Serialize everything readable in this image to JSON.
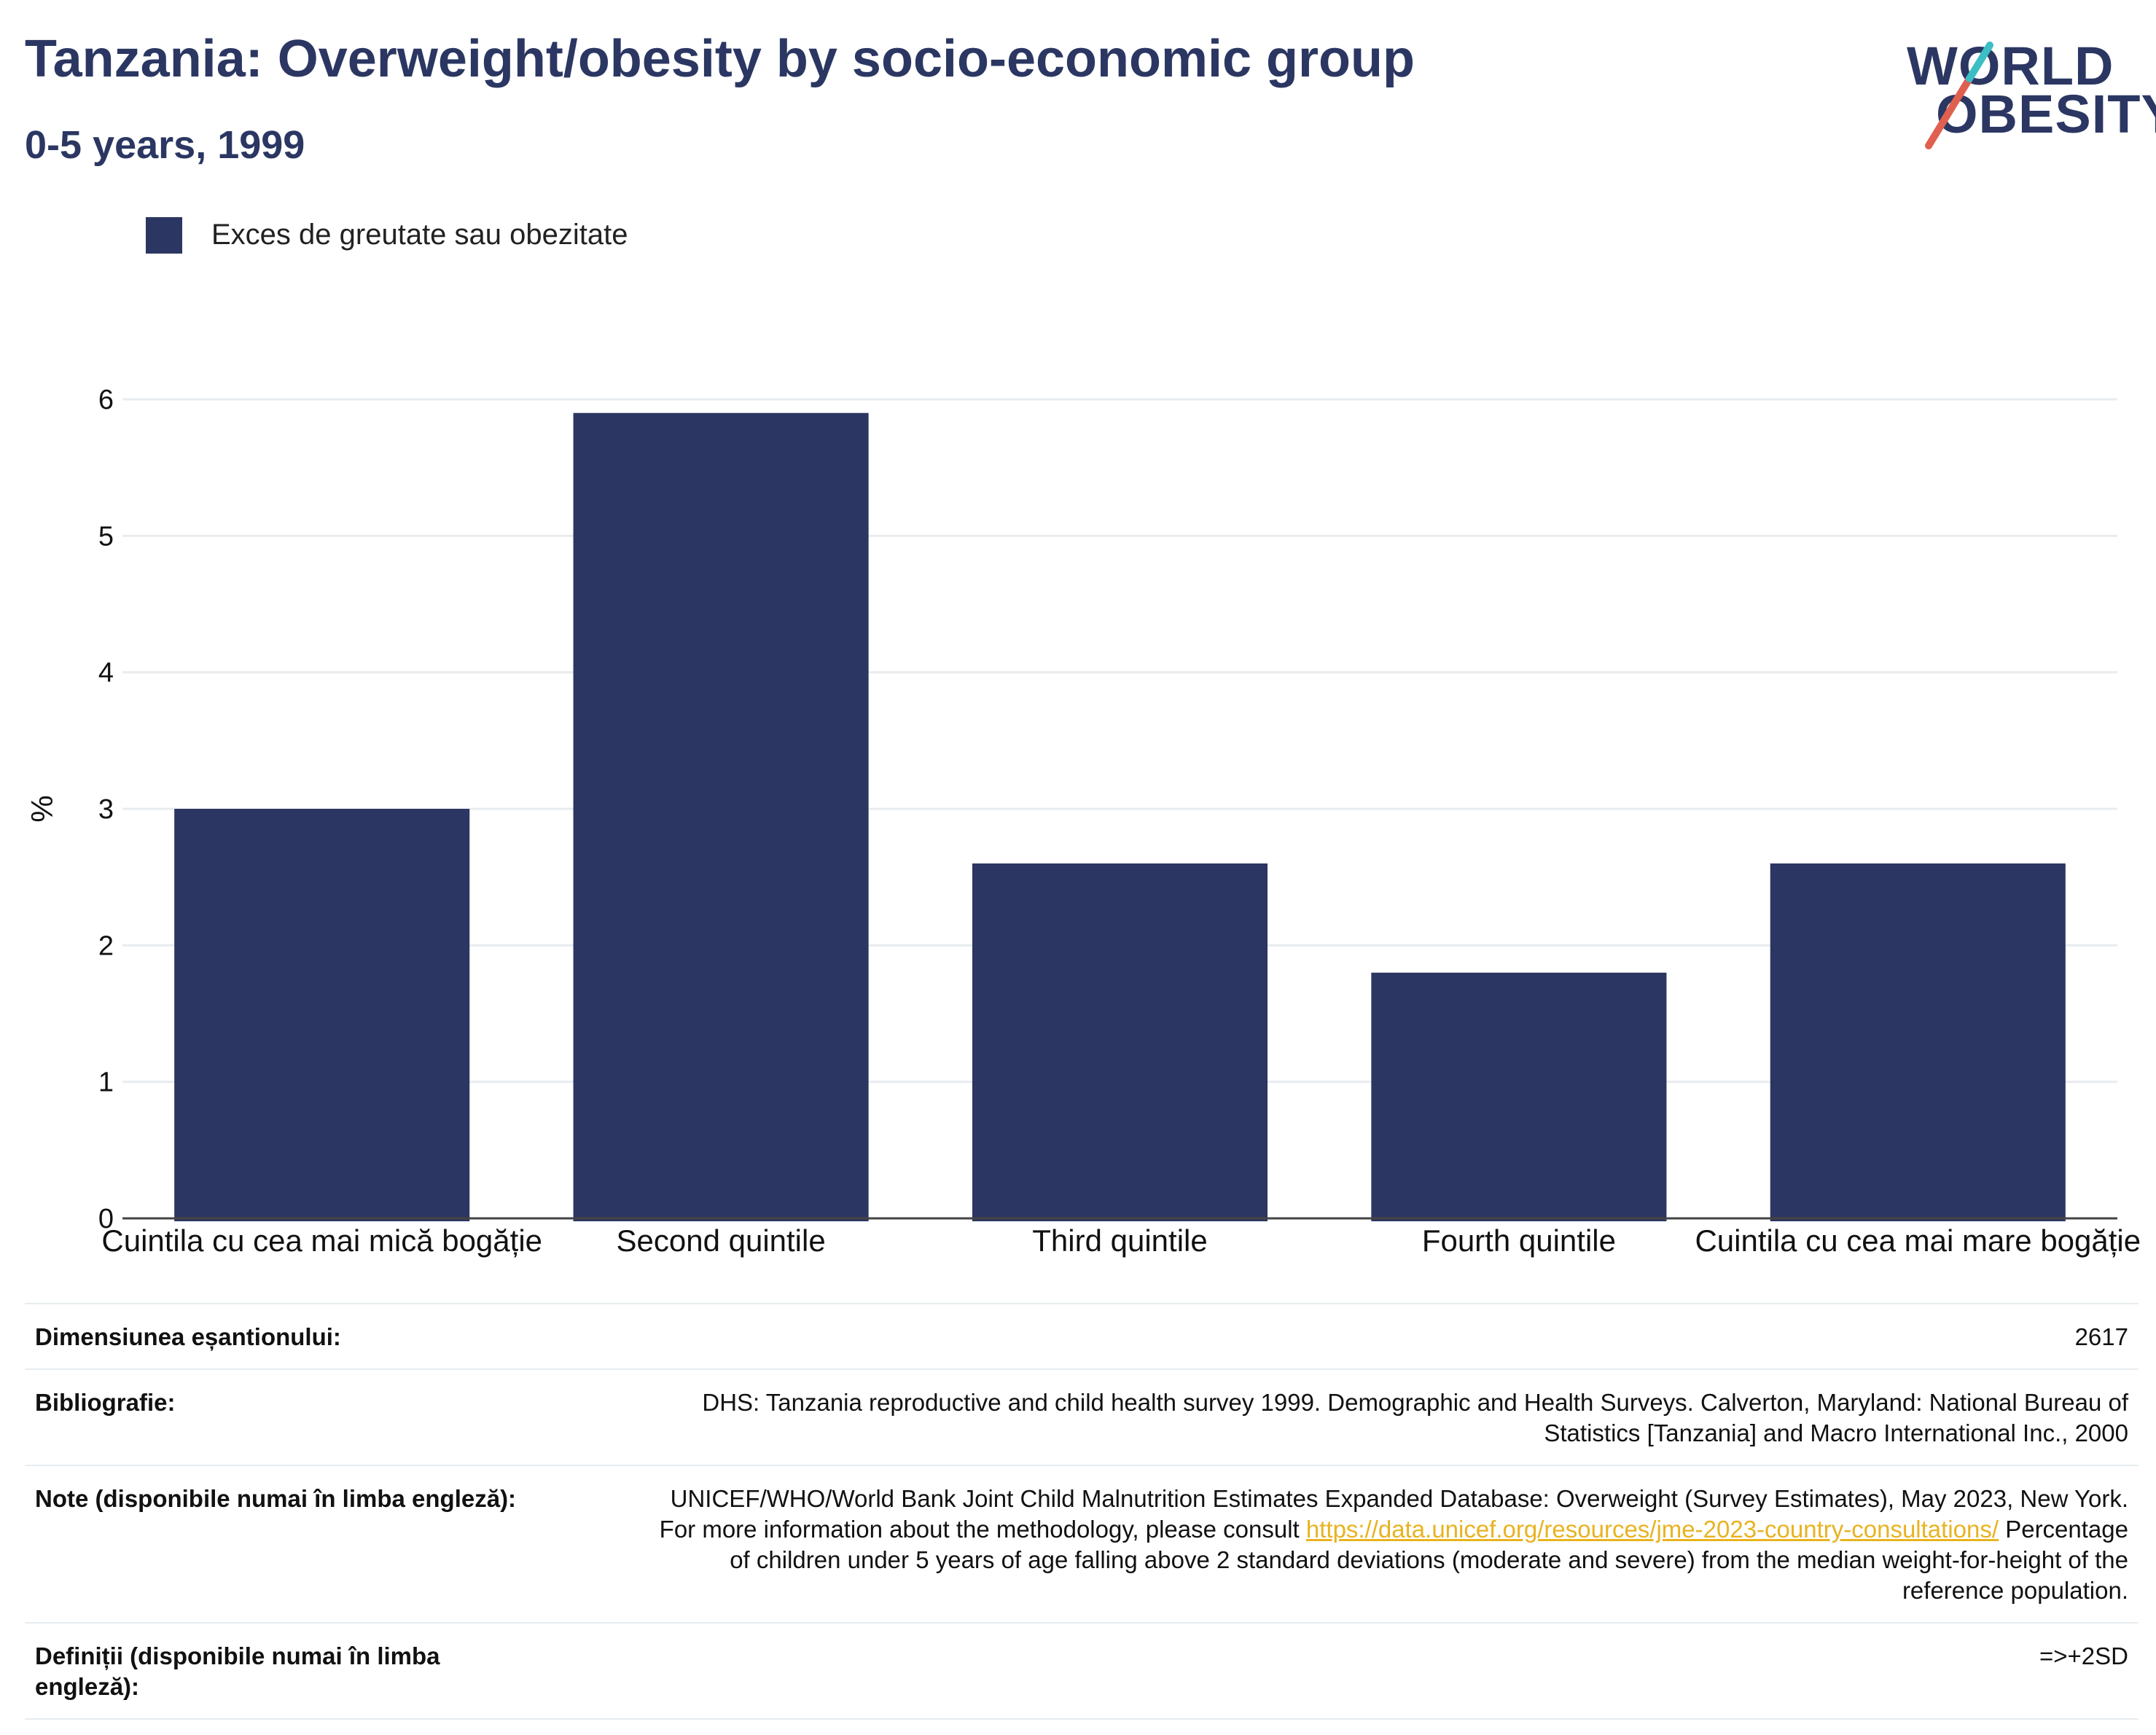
{
  "header": {
    "title": "Tanzania: Overweight/obesity by socio-economic group",
    "subtitle": "0-5 years, 1999"
  },
  "logo": {
    "line1": "WORLD",
    "line2": "OBESITY",
    "text_color": "#2b3762",
    "slash_colors": [
      "#e0604f",
      "#3bbfc4"
    ]
  },
  "legend": {
    "label": "Exces de greutate sau obezitate",
    "color": "#2b3662"
  },
  "chart_data": {
    "type": "bar",
    "categories": [
      "Cuintila cu cea mai mică bogăție",
      "Second quintile",
      "Third quintile",
      "Fourth quintile",
      "Cuintila cu cea mai mare bogăție"
    ],
    "series": [
      {
        "name": "Exces de greutate sau obezitate",
        "values": [
          3.0,
          5.9,
          2.6,
          1.8,
          2.6
        ],
        "color": "#2b3662"
      }
    ],
    "ylabel": "%",
    "xlabel": "",
    "ylim": [
      0,
      6
    ],
    "yticks": [
      "0",
      "1",
      "2",
      "3",
      "4",
      "5",
      "6"
    ],
    "grid": true,
    "legend_position": "top-left"
  },
  "meta": {
    "sample_size": {
      "label": "Dimensiunea eșantionului:",
      "value": "2617"
    },
    "bibliography": {
      "label": "Bibliografie:",
      "value": "DHS: Tanzania reproductive and child health survey 1999. Demographic and Health Surveys. Calverton, Maryland: National Bureau of Statistics [Tanzania] and Macro International Inc., 2000"
    },
    "notes": {
      "label": "Note (disponibile numai în limba engleză):",
      "text_before": "UNICEF/WHO/World Bank Joint Child Malnutrition Estimates Expanded Database: Overweight (Survey Estimates), May 2023, New York. For more information about the methodology, please consult ",
      "link": "https://data.unicef.org/resources/jme-2023-country-consultations/",
      "text_after": " Percentage of children under 5 years of age falling above 2 standard deviations (moderate and severe) from the median weight-for-height of the reference population."
    },
    "definitions": {
      "label": "Definiții (disponibile numai în limba engleză):",
      "value": "=>+2SD"
    }
  }
}
